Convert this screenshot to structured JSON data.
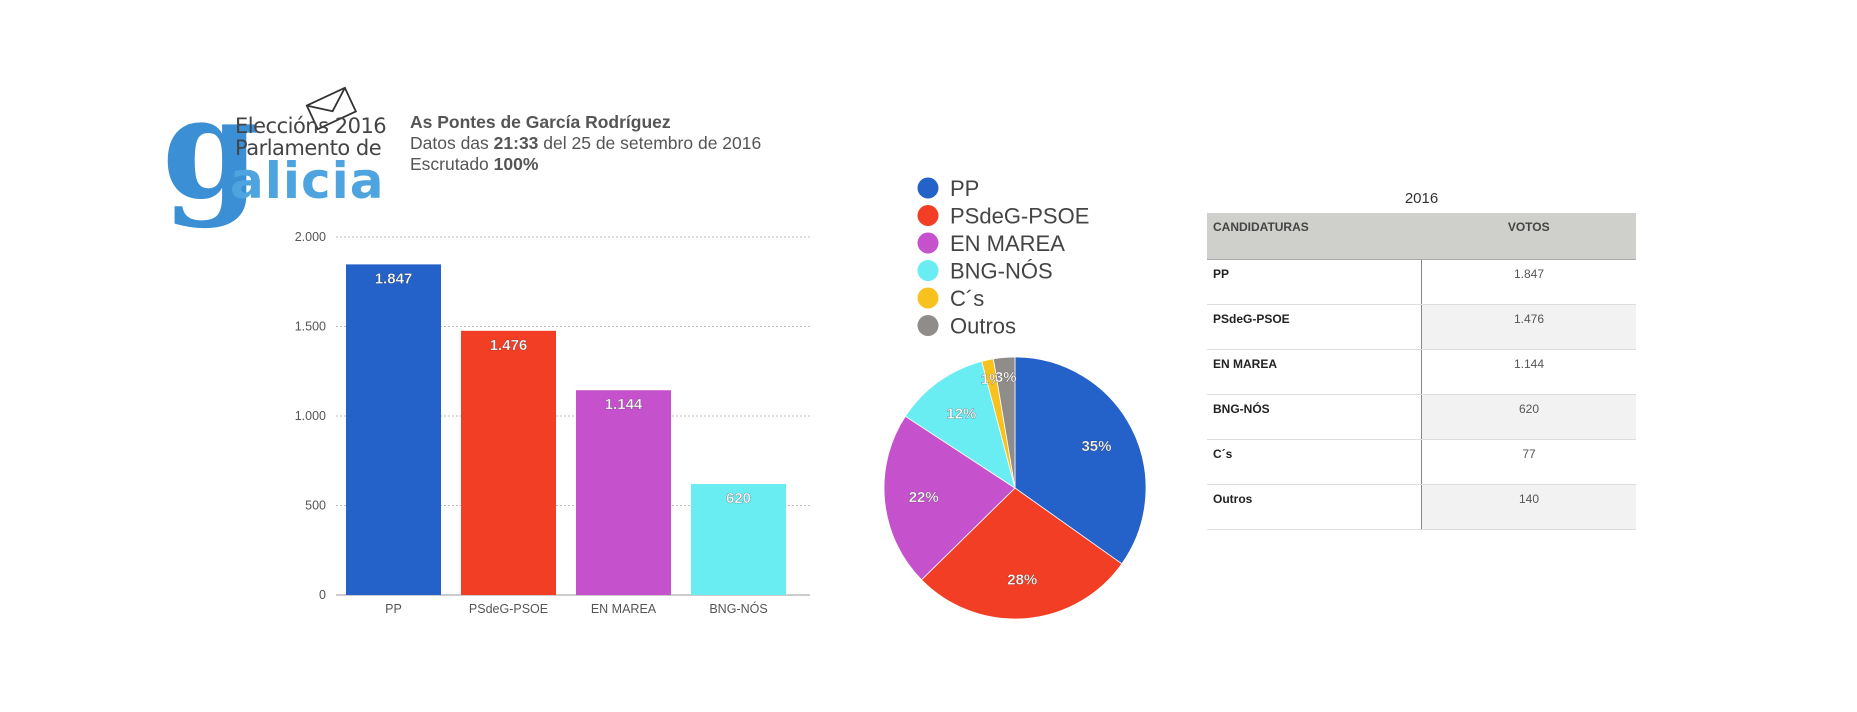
{
  "logo": {
    "line1": "Eleccións 2016",
    "line2": "Parlamento de",
    "brand": "alicia",
    "g": "g"
  },
  "info": {
    "place": "As Pontes de García Rodríguez",
    "data_prefix": "Datos das ",
    "time": "21:33",
    "data_suffix": " del 25 de setembro de 2016",
    "scrutiny_prefix": "Escrutado ",
    "scrutiny_value": "100%"
  },
  "colors": {
    "PP": "#2461c8",
    "PSdeG-PSOE": "#f23e24",
    "EN MAREA": "#c651cc",
    "BNG-NÓS": "#69ecf2",
    "C´s": "#f8c21e",
    "Outros": "#8f8c8a"
  },
  "chart_data": [
    {
      "type": "bar",
      "categories": [
        "PP",
        "PSdeG-PSOE",
        "EN MAREA",
        "BNG-NÓS"
      ],
      "values": [
        1847,
        1476,
        1144,
        620
      ],
      "data_labels": [
        "1.847",
        "1.476",
        "1.144",
        "620"
      ],
      "ylim": [
        0,
        2000
      ],
      "yticks": [
        0,
        500,
        1000,
        1500,
        2000
      ],
      "ytick_labels": [
        "0",
        "500",
        "1.000",
        "1.500",
        "2.000"
      ],
      "grid": true,
      "xlabel": "",
      "ylabel": ""
    },
    {
      "type": "pie",
      "labels": [
        "PP",
        "PSdeG-PSOE",
        "EN MAREA",
        "BNG-NÓS",
        "C´s",
        "Outros"
      ],
      "values": [
        1847,
        1476,
        1144,
        620,
        77,
        140
      ],
      "data_labels": [
        "35%",
        "28%",
        "22%",
        "12%",
        "1%",
        "3%"
      ],
      "legend_position": "top"
    },
    {
      "type": "table",
      "title": "2016",
      "columns": [
        "CANDIDATURAS",
        "VOTOS"
      ],
      "rows": [
        [
          "PP",
          "1.847"
        ],
        [
          "PSdeG-PSOE",
          "1.476"
        ],
        [
          "EN MAREA",
          "1.144"
        ],
        [
          "BNG-NÓS",
          "620"
        ],
        [
          "C´s",
          "77"
        ],
        [
          "Outros",
          "140"
        ]
      ]
    }
  ]
}
